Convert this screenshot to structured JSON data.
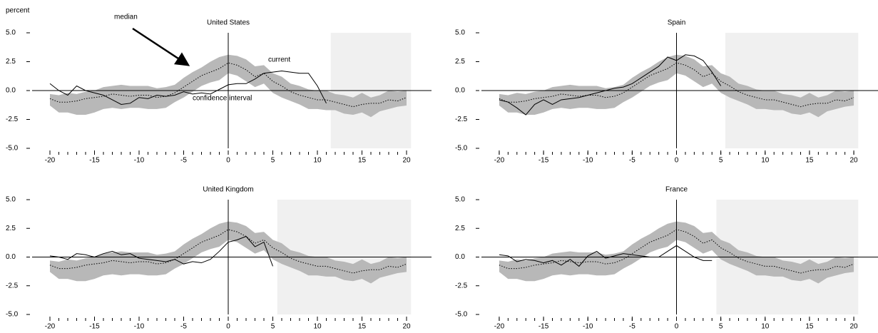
{
  "chart_data": [
    {
      "type": "fan",
      "title": "United States",
      "ylabel": "percent",
      "annotations": [
        "median",
        "current",
        "confidence interval"
      ],
      "x": [
        -20,
        -19,
        -18,
        -17,
        -16,
        -15,
        -14,
        -13,
        -12,
        -11,
        -10,
        -9,
        -8,
        -7,
        -6,
        -5,
        -4,
        -3,
        -2,
        -1,
        0,
        1,
        2,
        3,
        4,
        5,
        6,
        7,
        8,
        9,
        10,
        11,
        12,
        13,
        14,
        15,
        16,
        17,
        18,
        19,
        20
      ],
      "median": [
        -0.7,
        -1.0,
        -1.0,
        -0.9,
        -0.7,
        -0.6,
        -0.5,
        -0.3,
        -0.4,
        -0.5,
        -0.4,
        -0.4,
        -0.6,
        -0.5,
        -0.2,
        0.3,
        0.8,
        1.3,
        1.6,
        1.9,
        2.4,
        2.2,
        1.8,
        1.2,
        1.5,
        0.8,
        0.4,
        -0.1,
        -0.4,
        -0.6,
        -0.8,
        -0.8,
        -1.0,
        -1.2,
        -1.4,
        -1.2,
        -1.1,
        -1.1,
        -0.8,
        -0.9,
        -0.6
      ],
      "upper": [
        -0.3,
        -0.4,
        -0.2,
        -0.3,
        -0.1,
        0.0,
        0.3,
        0.4,
        0.5,
        0.4,
        0.4,
        0.4,
        0.2,
        0.3,
        0.5,
        1.1,
        1.6,
        2.0,
        2.5,
        2.9,
        3.1,
        3.0,
        2.7,
        2.1,
        2.2,
        1.5,
        1.2,
        0.6,
        0.4,
        0.1,
        0.0,
        0.0,
        -0.3,
        -0.4,
        -0.6,
        -0.2,
        -0.6,
        -0.4,
        0.0,
        -0.1,
        0.0
      ],
      "lower": [
        -1.3,
        -1.9,
        -1.9,
        -2.1,
        -2.1,
        -1.9,
        -1.6,
        -1.5,
        -1.6,
        -1.5,
        -1.5,
        -1.6,
        -1.6,
        -1.5,
        -1.0,
        -0.6,
        -0.1,
        0.4,
        0.7,
        0.9,
        1.5,
        1.3,
        0.8,
        0.3,
        0.6,
        -0.2,
        -0.6,
        -0.9,
        -1.2,
        -1.6,
        -1.6,
        -1.7,
        -1.7,
        -2.0,
        -2.1,
        -1.9,
        -2.3,
        -1.8,
        -1.6,
        -1.4,
        -1.3
      ],
      "current": [
        0.6,
        0.0,
        -0.4,
        0.4,
        0.0,
        -0.2,
        -0.4,
        -0.8,
        -1.2,
        -1.1,
        -0.6,
        -0.7,
        -0.4,
        -0.5,
        -0.4,
        -0.1,
        -0.3,
        -0.2,
        -0.3,
        0.1,
        0.5,
        0.6,
        0.6,
        1.0,
        1.5,
        1.6,
        1.7,
        1.6,
        1.5,
        1.5,
        0.4,
        -1.1,
        null,
        null,
        null,
        null,
        null,
        null,
        null,
        null,
        null
      ],
      "shaded_region": [
        11.5,
        20.5
      ],
      "band_color": "#b8b8b8",
      "shade_color": "#f0f0f0",
      "line_color": "#000000",
      "xlim": [
        -21,
        21
      ],
      "ylim": [
        -5,
        5
      ],
      "xticks": [
        -20,
        -15,
        -10,
        -5,
        0,
        5,
        10,
        15,
        20
      ],
      "yticks": [
        {
          "value": 5,
          "label": "5.0"
        },
        {
          "value": 2.5,
          "label": "2.5"
        },
        {
          "value": 0,
          "label": "0.0"
        },
        {
          "value": -2.5,
          "label": "-2.5"
        },
        {
          "value": -5,
          "label": "-5.0"
        }
      ]
    },
    {
      "type": "fan",
      "title": "Spain",
      "x": [
        -20,
        -19,
        -18,
        -17,
        -16,
        -15,
        -14,
        -13,
        -12,
        -11,
        -10,
        -9,
        -8,
        -7,
        -6,
        -5,
        -4,
        -3,
        -2,
        -1,
        0,
        1,
        2,
        3,
        4,
        5,
        6,
        7,
        8,
        9,
        10,
        11,
        12,
        13,
        14,
        15,
        16,
        17,
        18,
        19,
        20
      ],
      "median": [
        -0.7,
        -1.0,
        -1.0,
        -0.9,
        -0.7,
        -0.6,
        -0.5,
        -0.3,
        -0.4,
        -0.5,
        -0.4,
        -0.4,
        -0.6,
        -0.5,
        -0.2,
        0.3,
        0.8,
        1.3,
        1.6,
        1.9,
        2.4,
        2.2,
        1.8,
        1.2,
        1.5,
        0.8,
        0.4,
        -0.1,
        -0.4,
        -0.6,
        -0.8,
        -0.8,
        -1.0,
        -1.2,
        -1.4,
        -1.2,
        -1.1,
        -1.1,
        -0.8,
        -0.9,
        -0.6
      ],
      "upper": [
        -0.3,
        -0.4,
        -0.2,
        -0.3,
        -0.1,
        0.0,
        0.3,
        0.4,
        0.5,
        0.4,
        0.4,
        0.4,
        0.2,
        0.3,
        0.5,
        1.1,
        1.6,
        2.0,
        2.5,
        2.9,
        3.1,
        3.0,
        2.7,
        2.1,
        2.2,
        1.5,
        1.2,
        0.6,
        0.4,
        0.1,
        0.0,
        0.0,
        -0.3,
        -0.4,
        -0.6,
        -0.2,
        -0.6,
        -0.4,
        0.0,
        -0.1,
        0.0
      ],
      "lower": [
        -1.3,
        -1.9,
        -1.9,
        -2.1,
        -2.1,
        -1.9,
        -1.6,
        -1.5,
        -1.6,
        -1.5,
        -1.5,
        -1.6,
        -1.6,
        -1.5,
        -1.0,
        -0.6,
        -0.1,
        0.4,
        0.7,
        0.9,
        1.5,
        1.3,
        0.8,
        0.3,
        0.6,
        -0.2,
        -0.6,
        -0.9,
        -1.2,
        -1.6,
        -1.6,
        -1.7,
        -1.7,
        -2.0,
        -2.1,
        -1.9,
        -2.3,
        -1.8,
        -1.6,
        -1.4,
        -1.3
      ],
      "current": [
        -0.8,
        -1.0,
        -1.5,
        -2.1,
        -1.2,
        -0.8,
        -1.2,
        -0.8,
        -0.7,
        -0.6,
        -0.4,
        -0.2,
        0.0,
        0.2,
        0.3,
        0.6,
        1.1,
        1.6,
        2.1,
        2.9,
        2.6,
        3.1,
        3.0,
        2.6,
        1.6,
        0.4,
        null,
        null,
        null,
        null,
        null,
        null,
        null,
        null,
        null,
        null,
        null,
        null,
        null,
        null,
        null
      ],
      "shaded_region": [
        5.5,
        20.5
      ],
      "band_color": "#b8b8b8",
      "shade_color": "#f0f0f0",
      "line_color": "#000000",
      "xlim": [
        -21,
        21
      ],
      "ylim": [
        -5,
        5
      ],
      "xticks": [
        -20,
        -15,
        -10,
        -5,
        0,
        5,
        10,
        15,
        20
      ],
      "yticks": [
        {
          "value": 5,
          "label": "5.0"
        },
        {
          "value": 2.5,
          "label": "2.5"
        },
        {
          "value": 0,
          "label": "0.0"
        },
        {
          "value": -2.5,
          "label": "-2.5"
        },
        {
          "value": -5,
          "label": "-5.0"
        }
      ]
    },
    {
      "type": "fan",
      "title": "United Kingdom",
      "x": [
        -20,
        -19,
        -18,
        -17,
        -16,
        -15,
        -14,
        -13,
        -12,
        -11,
        -10,
        -9,
        -8,
        -7,
        -6,
        -5,
        -4,
        -3,
        -2,
        -1,
        0,
        1,
        2,
        3,
        4,
        5,
        6,
        7,
        8,
        9,
        10,
        11,
        12,
        13,
        14,
        15,
        16,
        17,
        18,
        19,
        20
      ],
      "median": [
        -0.7,
        -1.0,
        -1.0,
        -0.9,
        -0.7,
        -0.6,
        -0.5,
        -0.3,
        -0.4,
        -0.5,
        -0.4,
        -0.4,
        -0.6,
        -0.5,
        -0.2,
        0.3,
        0.8,
        1.3,
        1.6,
        1.9,
        2.4,
        2.2,
        1.8,
        1.2,
        1.5,
        0.8,
        0.4,
        -0.1,
        -0.4,
        -0.6,
        -0.8,
        -0.8,
        -1.0,
        -1.2,
        -1.4,
        -1.2,
        -1.1,
        -1.1,
        -0.8,
        -0.9,
        -0.6
      ],
      "upper": [
        -0.3,
        -0.4,
        -0.2,
        -0.3,
        -0.1,
        0.0,
        0.3,
        0.4,
        0.5,
        0.4,
        0.4,
        0.4,
        0.2,
        0.3,
        0.5,
        1.1,
        1.6,
        2.0,
        2.5,
        2.9,
        3.1,
        3.0,
        2.7,
        2.1,
        2.2,
        1.5,
        1.2,
        0.6,
        0.4,
        0.1,
        0.0,
        0.0,
        -0.3,
        -0.4,
        -0.6,
        -0.2,
        -0.6,
        -0.4,
        0.0,
        -0.1,
        0.0
      ],
      "lower": [
        -1.3,
        -1.9,
        -1.9,
        -2.1,
        -2.1,
        -1.9,
        -1.6,
        -1.5,
        -1.6,
        -1.5,
        -1.5,
        -1.6,
        -1.6,
        -1.5,
        -1.0,
        -0.6,
        -0.1,
        0.4,
        0.7,
        0.9,
        1.5,
        1.3,
        0.8,
        0.3,
        0.6,
        -0.2,
        -0.6,
        -0.9,
        -1.2,
        -1.6,
        -1.6,
        -1.7,
        -1.7,
        -2.0,
        -2.1,
        -1.9,
        -2.3,
        -1.8,
        -1.6,
        -1.4,
        -1.3
      ],
      "current": [
        0.1,
        0.0,
        -0.2,
        0.3,
        0.2,
        0.0,
        0.3,
        0.5,
        0.2,
        0.3,
        -0.1,
        -0.2,
        -0.3,
        -0.4,
        -0.2,
        -0.6,
        -0.4,
        -0.5,
        -0.2,
        0.5,
        1.3,
        1.5,
        1.8,
        0.9,
        1.3,
        -0.8,
        null,
        null,
        null,
        null,
        null,
        null,
        null,
        null,
        null,
        null,
        null,
        null,
        null,
        null,
        null
      ],
      "shaded_region": [
        5.5,
        20.5
      ],
      "band_color": "#b8b8b8",
      "shade_color": "#f0f0f0",
      "line_color": "#000000",
      "xlim": [
        -21,
        21
      ],
      "ylim": [
        -5,
        5
      ],
      "xticks": [
        -20,
        -15,
        -10,
        -5,
        0,
        5,
        10,
        15,
        20
      ],
      "yticks": [
        {
          "value": 5,
          "label": "5.0"
        },
        {
          "value": 2.5,
          "label": "2.5"
        },
        {
          "value": 0,
          "label": "0.0"
        },
        {
          "value": -2.5,
          "label": "-2.5"
        },
        {
          "value": -5,
          "label": "-5.0"
        }
      ]
    },
    {
      "type": "fan",
      "title": "France",
      "x": [
        -20,
        -19,
        -18,
        -17,
        -16,
        -15,
        -14,
        -13,
        -12,
        -11,
        -10,
        -9,
        -8,
        -7,
        -6,
        -5,
        -4,
        -3,
        -2,
        -1,
        0,
        1,
        2,
        3,
        4,
        5,
        6,
        7,
        8,
        9,
        10,
        11,
        12,
        13,
        14,
        15,
        16,
        17,
        18,
        19,
        20
      ],
      "median": [
        -0.7,
        -1.0,
        -1.0,
        -0.9,
        -0.7,
        -0.6,
        -0.5,
        -0.3,
        -0.4,
        -0.5,
        -0.4,
        -0.4,
        -0.6,
        -0.5,
        -0.2,
        0.3,
        0.8,
        1.3,
        1.6,
        1.9,
        2.4,
        2.2,
        1.8,
        1.2,
        1.5,
        0.8,
        0.4,
        -0.1,
        -0.4,
        -0.6,
        -0.8,
        -0.8,
        -1.0,
        -1.2,
        -1.4,
        -1.2,
        -1.1,
        -1.1,
        -0.8,
        -0.9,
        -0.6
      ],
      "upper": [
        -0.3,
        -0.4,
        -0.2,
        -0.3,
        -0.1,
        0.0,
        0.3,
        0.4,
        0.5,
        0.4,
        0.4,
        0.4,
        0.2,
        0.3,
        0.5,
        1.1,
        1.6,
        2.0,
        2.5,
        2.9,
        3.1,
        3.0,
        2.7,
        2.1,
        2.2,
        1.5,
        1.2,
        0.6,
        0.4,
        0.1,
        0.0,
        0.0,
        -0.3,
        -0.4,
        -0.6,
        -0.2,
        -0.6,
        -0.4,
        0.0,
        -0.1,
        0.0
      ],
      "lower": [
        -1.3,
        -1.9,
        -1.9,
        -2.1,
        -2.1,
        -1.9,
        -1.6,
        -1.5,
        -1.6,
        -1.5,
        -1.5,
        -1.6,
        -1.6,
        -1.5,
        -1.0,
        -0.6,
        -0.1,
        0.4,
        0.7,
        0.9,
        1.5,
        1.3,
        0.8,
        0.3,
        0.6,
        -0.2,
        -0.6,
        -0.9,
        -1.2,
        -1.6,
        -1.6,
        -1.7,
        -1.7,
        -2.0,
        -2.1,
        -1.9,
        -2.3,
        -1.8,
        -1.6,
        -1.4,
        -1.3
      ],
      "current": [
        0.2,
        0.1,
        -0.4,
        -0.2,
        -0.3,
        -0.5,
        -0.3,
        -0.7,
        -0.2,
        -0.8,
        0.1,
        0.5,
        -0.1,
        0.1,
        0.3,
        0.2,
        0.1,
        0.0,
        0.0,
        0.5,
        1.0,
        0.5,
        0.0,
        -0.3,
        -0.3,
        null,
        null,
        null,
        null,
        null,
        null,
        null,
        null,
        null,
        null,
        null,
        null,
        null,
        null,
        null,
        null
      ],
      "shaded_region": [
        4.5,
        20.5
      ],
      "band_color": "#b8b8b8",
      "shade_color": "#f0f0f0",
      "line_color": "#000000",
      "xlim": [
        -21,
        21
      ],
      "ylim": [
        -5,
        5
      ],
      "xticks": [
        -20,
        -15,
        -10,
        -5,
        0,
        5,
        10,
        15,
        20
      ],
      "yticks": [
        {
          "value": 5,
          "label": "5.0"
        },
        {
          "value": 2.5,
          "label": "2.5"
        },
        {
          "value": 0,
          "label": "0.0"
        },
        {
          "value": -2.5,
          "label": "-2.5"
        },
        {
          "value": -5,
          "label": "-5.0"
        }
      ]
    }
  ]
}
